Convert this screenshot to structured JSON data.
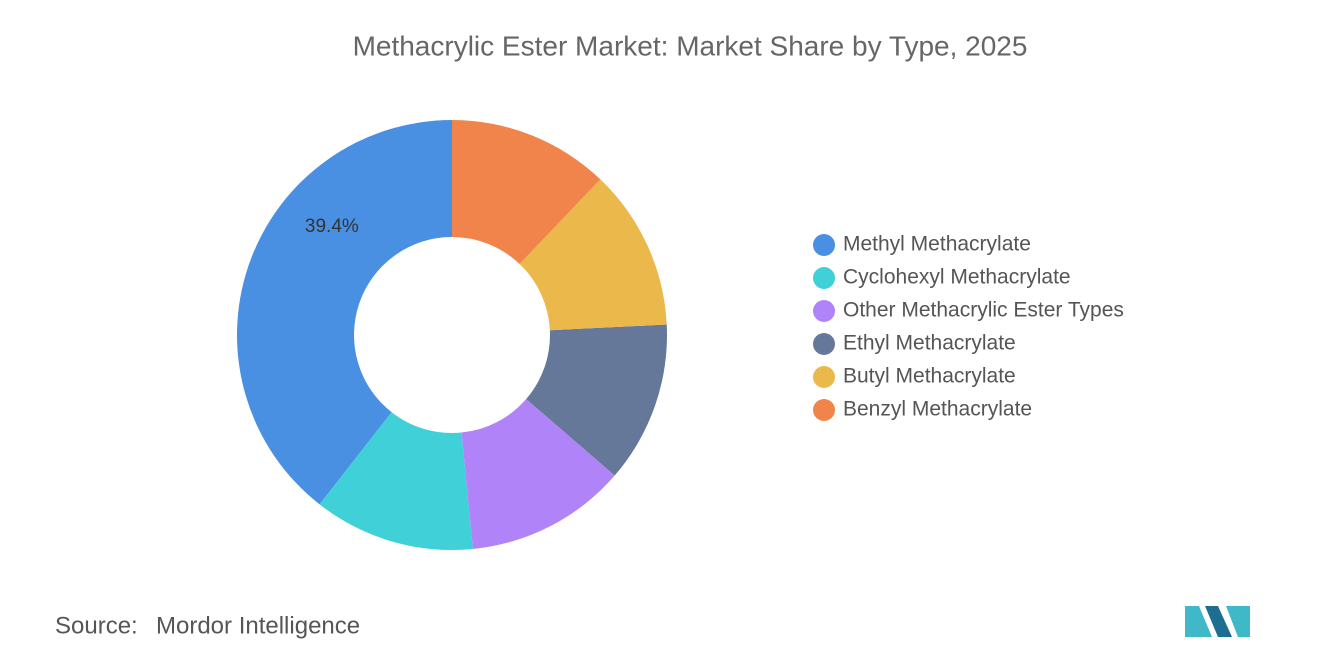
{
  "chart_data": {
    "type": "donut",
    "title": "Methacrylic Ester Market: Market Share by Type, 2025",
    "categories": [
      "Methyl Methacrylate",
      "Cyclohexyl Methacrylate",
      "Other Methacrylic Ester Types",
      "Ethyl Methacrylate",
      "Butyl Methacrylate",
      "Benzyl Methacrylate"
    ],
    "values": [
      39.4,
      12.1,
      12.1,
      12.1,
      12.1,
      12.1
    ],
    "value_labels": [
      "39.4%",
      null,
      null,
      null,
      null,
      null
    ],
    "colors": [
      "#4a90e2",
      "#40d0d8",
      "#b084f8",
      "#657899",
      "#ebb84b",
      "#f0844a"
    ],
    "legend_position": "right"
  },
  "source": {
    "label": "Source:",
    "text": "Mordor Intelligence"
  }
}
